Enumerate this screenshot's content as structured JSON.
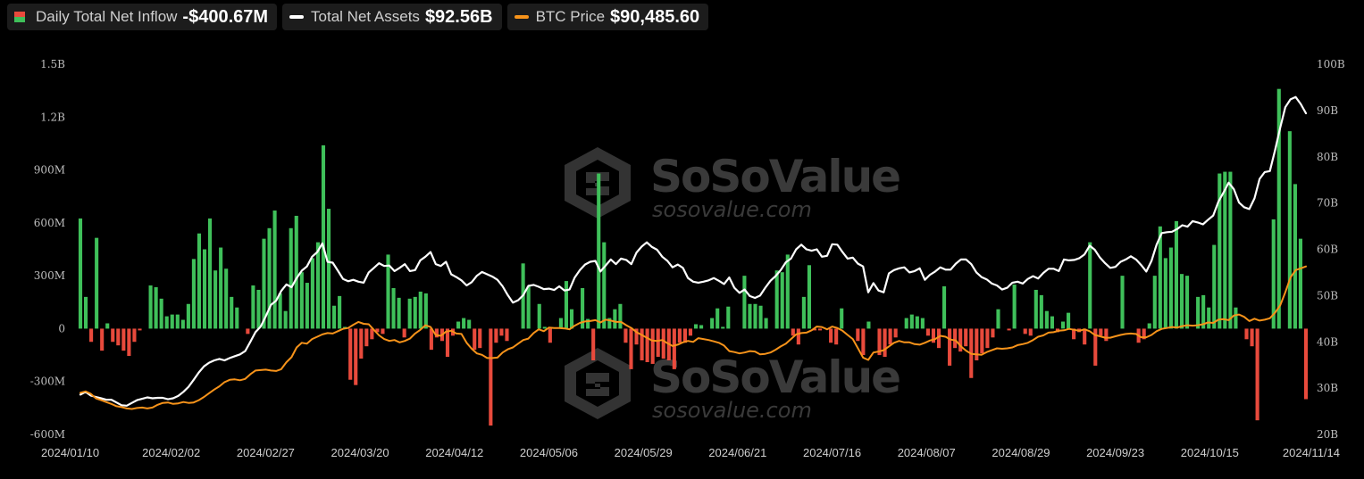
{
  "legend": {
    "inflow": {
      "label": "Daily Total Net Inflow",
      "value": "-$400.67M"
    },
    "assets": {
      "label": "Total Net Assets",
      "value": "$92.56B"
    },
    "btc": {
      "label": "BTC Price",
      "value": "$90,485.60"
    }
  },
  "watermark": {
    "brand": "SoSoValue",
    "site": "sosovalue.com"
  },
  "colors": {
    "positive": "#3fc05a",
    "negative": "#e84a3c",
    "assets_line": "#ffffff",
    "btc_line": "#f7931a"
  },
  "chart_data": {
    "type": "bar",
    "x_ticks": [
      "2024/01/10",
      "2024/02/02",
      "2024/02/27",
      "2024/03/20",
      "2024/04/12",
      "2024/05/06",
      "2024/05/29",
      "2024/06/21",
      "2024/07/16",
      "2024/08/07",
      "2024/08/29",
      "2024/09/23",
      "2024/10/15",
      "2024/11/14"
    ],
    "y_left": {
      "ticks": [
        "1.5B",
        "1.2B",
        "900M",
        "600M",
        "300M",
        "0",
        "-300M",
        "-600M"
      ],
      "range": [
        -600,
        1500
      ],
      "unit": "M"
    },
    "y_right": {
      "ticks": [
        "100B",
        "90B",
        "80B",
        "70B",
        "60B",
        "50B",
        "40B",
        "30B",
        "20B"
      ],
      "range": [
        20,
        100
      ],
      "unit": "B"
    },
    "series": [
      {
        "name": "Daily Total Net Inflow",
        "type": "bar",
        "values": [
          625,
          180,
          -75,
          515,
          -125,
          30,
          -75,
          -95,
          -125,
          -155,
          -75,
          -10,
          0,
          245,
          235,
          170,
          70,
          80,
          80,
          50,
          140,
          395,
          540,
          450,
          625,
          330,
          460,
          340,
          180,
          120,
          0,
          -30,
          245,
          220,
          510,
          570,
          670,
          200,
          100,
          570,
          640,
          320,
          260,
          400,
          490,
          1040,
          680,
          130,
          185,
          10,
          -290,
          -320,
          -170,
          -100,
          -60,
          -20,
          -30,
          420,
          230,
          175,
          -50,
          170,
          180,
          210,
          200,
          -120,
          -50,
          -70,
          -160,
          -40,
          40,
          60,
          50,
          -120,
          -110,
          0,
          -550,
          -80,
          -40,
          -70,
          0,
          0,
          370,
          240,
          0,
          140,
          10,
          -80,
          0,
          60,
          270,
          110,
          0,
          230,
          55,
          -180,
          880,
          490,
          60,
          110,
          140,
          -80,
          -230,
          -90,
          -180,
          -190,
          -200,
          -160,
          -170,
          -180,
          -230,
          -80,
          -80,
          -40,
          25,
          20,
          0,
          60,
          115,
          10,
          125,
          0,
          0,
          300,
          140,
          140,
          130,
          60,
          0,
          330,
          320,
          420,
          -40,
          -90,
          180,
          360,
          -10,
          -10,
          0,
          -80,
          -90,
          115,
          0,
          0,
          -70,
          -150,
          40,
          0,
          -150,
          -160,
          -90,
          -50,
          0,
          60,
          80,
          70,
          60,
          -40,
          -80,
          -110,
          240,
          -210,
          -110,
          -130,
          -100,
          -280,
          -180,
          -140,
          -110,
          -50,
          110,
          0,
          -10,
          250,
          0,
          -30,
          -40,
          220,
          190,
          100,
          70,
          -20,
          40,
          90,
          -60,
          -20,
          -90,
          490,
          -210,
          -40,
          -70,
          0,
          0,
          300,
          0,
          0,
          -80,
          -60,
          30,
          300,
          580,
          400,
          460,
          610,
          310,
          300,
          0,
          180,
          190,
          120,
          475,
          880,
          890,
          890,
          120,
          0,
          -60,
          -100,
          -520,
          0,
          0,
          620,
          1360,
          0,
          1120,
          820,
          510,
          -400
        ]
      },
      {
        "name": "Total Net Assets",
        "type": "line",
        "axis": "right",
        "values": [
          28.6,
          29.2,
          28.4,
          28.1,
          27.8,
          27.5,
          27.5,
          26.9,
          26.3,
          26.2,
          26.8,
          27.4,
          27.7,
          28.0,
          27.8,
          27.9,
          27.9,
          27.6,
          27.8,
          28.3,
          29.2,
          30.3,
          31.8,
          33.4,
          34.7,
          35.5,
          36.0,
          36.3,
          36.0,
          36.5,
          36.9,
          37.3,
          38.0,
          40.0,
          42.1,
          43.3,
          45.5,
          48.0,
          48.9,
          51.0,
          52.4,
          51.8,
          53.8,
          55.4,
          56.3,
          58.4,
          59.4,
          61.3,
          57.3,
          57.1,
          55.4,
          53.6,
          53.1,
          53.4,
          53.0,
          52.8,
          55.0,
          56.0,
          57.0,
          56.4,
          56.5,
          55.3,
          56.0,
          56.8,
          55.3,
          55.5,
          57.6,
          58.4,
          59.4,
          56.8,
          56.4,
          57.3,
          54.6,
          54.0,
          53.3,
          52.2,
          52.9,
          54.3,
          55.1,
          54.6,
          54.1,
          53.4,
          52.0,
          50.1,
          48.5,
          49.0,
          50.1,
          52.1,
          52.3,
          51.9,
          51.4,
          51.5,
          51.2,
          52.0,
          51.1,
          51.3,
          53.9,
          55.5,
          56.7,
          57.3,
          57.5,
          55.2,
          56.5,
          57.8,
          56.8,
          58.0,
          57.7,
          56.8,
          59.3,
          60.6,
          61.5,
          60.5,
          59.9,
          58.4,
          57.5,
          56.1,
          56.7,
          56.0,
          53.8,
          53.0,
          52.8,
          53.0,
          53.3,
          53.8,
          53.2,
          52.5,
          53.9,
          51.7,
          50.6,
          51.3,
          49.9,
          49.5,
          50.0,
          51.7,
          53.2,
          54.2,
          55.5,
          57.2,
          58.0,
          60.0,
          61.0,
          60.0,
          59.7,
          60.0,
          58.4,
          58.6,
          61.1,
          61.0,
          59.4,
          58.0,
          58.2,
          56.9,
          56.3,
          50.7,
          52.7,
          51.1,
          50.7,
          54.8,
          55.5,
          55.9,
          56.1,
          55.0,
          55.3,
          55.9,
          53.4,
          54.5,
          55.2,
          56.1,
          55.6,
          55.6,
          56.9,
          57.8,
          57.8,
          56.8,
          55.0,
          54.0,
          53.5,
          52.6,
          52.2,
          51.3,
          51.7,
          52.8,
          53.0,
          52.6,
          53.6,
          54.2,
          53.7,
          54.9,
          55.8,
          55.8,
          55.3,
          57.8,
          57.6,
          57.7,
          58.1,
          58.9,
          60.8,
          59.9,
          58.2,
          57.0,
          56.0,
          56.2,
          57.3,
          57.8,
          58.5,
          57.8,
          56.6,
          55.2,
          57.5,
          61.0,
          63.5,
          63.7,
          63.8,
          64.4,
          65.2,
          64.9,
          66.1,
          65.8,
          65.4,
          66.4,
          67.3,
          70.3,
          72.3,
          74.4,
          73.0,
          70.1,
          69.1,
          68.7,
          71.0,
          75.2,
          76.7,
          76.9,
          81.4,
          86.3,
          90.7,
          92.4,
          92.9,
          91.4,
          89.4
        ]
      },
      {
        "name": "BTC Price",
        "type": "line",
        "axis": "right",
        "values": [
          29.0,
          29.3,
          28.8,
          27.8,
          27.4,
          27.0,
          26.6,
          26.1,
          25.9,
          25.6,
          25.5,
          25.7,
          25.8,
          25.6,
          25.8,
          26.4,
          26.8,
          26.9,
          26.6,
          26.7,
          27.0,
          26.8,
          26.9,
          27.4,
          28.1,
          28.9,
          29.7,
          30.4,
          31.3,
          31.8,
          31.9,
          31.7,
          32.0,
          33.0,
          33.8,
          33.9,
          34.0,
          33.8,
          33.7,
          34.1,
          35.6,
          36.7,
          38.8,
          39.8,
          39.6,
          40.6,
          41.1,
          41.6,
          41.9,
          41.8,
          42.3,
          42.8,
          43.0,
          43.7,
          44.3,
          43.9,
          43.8,
          42.6,
          41.4,
          40.6,
          40.2,
          40.4,
          39.9,
          40.2,
          40.7,
          41.8,
          42.6,
          43.6,
          43.2,
          41.5,
          41.3,
          42.2,
          42.4,
          41.8,
          41.7,
          39.8,
          38.5,
          37.5,
          37.2,
          36.5,
          36.5,
          36.6,
          37.7,
          38.4,
          38.8,
          39.6,
          40.4,
          40.7,
          41.9,
          42.7,
          42.3,
          43.1,
          43.0,
          43.0,
          42.9,
          42.7,
          43.5,
          44.1,
          44.4,
          44.5,
          44.7,
          44.2,
          44.8,
          44.6,
          44.3,
          44.3,
          43.6,
          43.0,
          42.1,
          41.5,
          40.9,
          40.3,
          40.2,
          40.4,
          39.7,
          39.1,
          39.4,
          39.9,
          40.2,
          40.0,
          40.8,
          40.6,
          40.4,
          40.1,
          39.8,
          39.2,
          38.0,
          37.8,
          37.5,
          37.7,
          38.0,
          37.9,
          37.3,
          37.4,
          37.7,
          38.3,
          39.0,
          39.6,
          40.6,
          41.6,
          41.9,
          42.0,
          42.5,
          43.3,
          43.2,
          42.7,
          43.3,
          43.0,
          42.4,
          41.5,
          40.6,
          38.6,
          36.6,
          36.1,
          37.7,
          37.9,
          38.2,
          39.0,
          39.8,
          40.2,
          39.9,
          39.9,
          39.5,
          39.4,
          39.8,
          40.3,
          40.6,
          41.3,
          41.1,
          40.5,
          40.3,
          39.0,
          38.1,
          37.4,
          37.3,
          37.2,
          37.8,
          38.2,
          38.6,
          38.5,
          38.6,
          38.8,
          39.3,
          39.5,
          39.8,
          40.4,
          41.1,
          41.4,
          42.0,
          42.1,
          42.4,
          42.5,
          42.8,
          42.6,
          42.4,
          42.7,
          42.3,
          41.5,
          41.2,
          40.9,
          40.9,
          41.2,
          41.5,
          41.7,
          41.8,
          41.7,
          41.0,
          41.0,
          41.5,
          42.3,
          42.8,
          43.0,
          43.2,
          43.1,
          43.4,
          43.6,
          43.5,
          43.6,
          43.8,
          44.2,
          44.1,
          44.8,
          44.9,
          44.7,
          45.7,
          45.9,
          45.4,
          44.5,
          45.0,
          44.6,
          44.8,
          45.1,
          46.3,
          47.9,
          50.7,
          53.9,
          55.5,
          55.9,
          56.3
        ]
      }
    ]
  }
}
